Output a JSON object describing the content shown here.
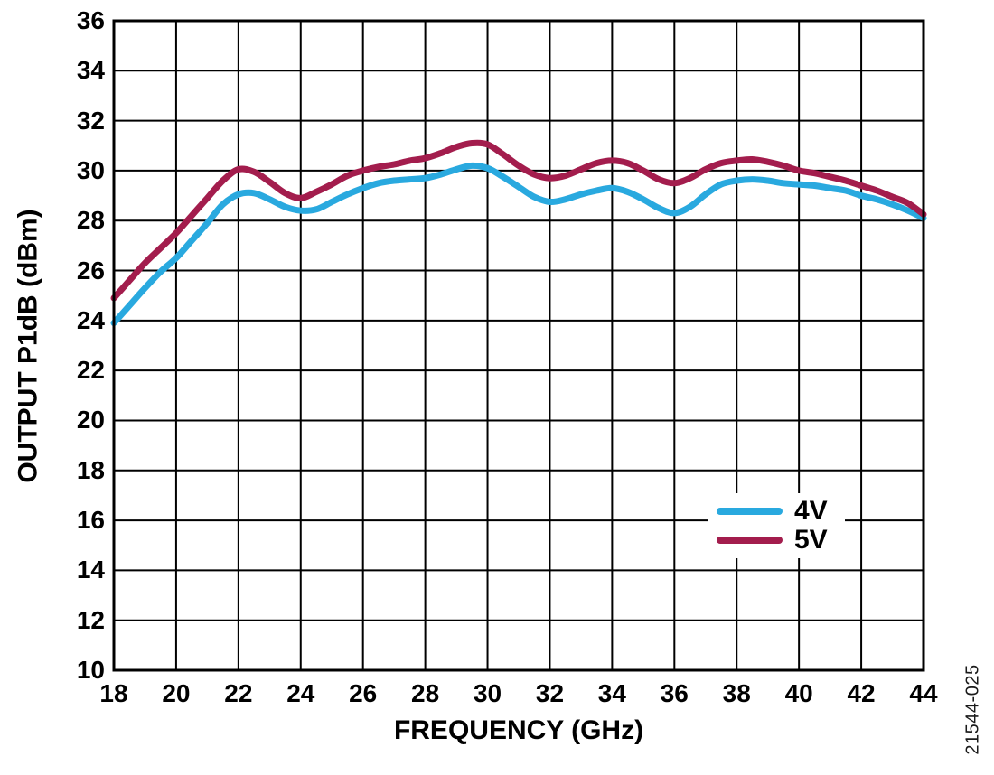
{
  "figure_code": "21544-025",
  "colors": {
    "background": "#ffffff",
    "grid": "#000000",
    "series_4v": "#29A9DF",
    "series_5v": "#A31D4D"
  },
  "chart_data": {
    "type": "line",
    "title": "",
    "xlabel": "FREQUENCY (GHz)",
    "ylabel": "OUTPUT P1dB (dBm)",
    "xlim": [
      18,
      44
    ],
    "ylim": [
      10,
      36
    ],
    "x_tick_step": 2,
    "y_tick_step": 2,
    "x_ticks": [
      18,
      20,
      22,
      24,
      26,
      28,
      30,
      32,
      34,
      36,
      38,
      40,
      42,
      44
    ],
    "y_ticks": [
      10,
      12,
      14,
      16,
      18,
      20,
      22,
      24,
      26,
      28,
      30,
      32,
      34,
      36
    ],
    "grid": true,
    "legend_position": "inside right-middle",
    "x": [
      18,
      18.5,
      19,
      19.5,
      20,
      20.5,
      21,
      21.5,
      22,
      22.5,
      23,
      23.5,
      24,
      24.5,
      25,
      25.5,
      26,
      26.5,
      27,
      27.5,
      28,
      28.5,
      29,
      29.5,
      30,
      30.5,
      31,
      31.5,
      32,
      32.5,
      33,
      33.5,
      34,
      34.5,
      35,
      35.5,
      36,
      36.5,
      37,
      37.5,
      38,
      38.5,
      39,
      39.5,
      40,
      40.5,
      41,
      41.5,
      42,
      42.5,
      43,
      43.5,
      44
    ],
    "series": [
      {
        "name": "4V",
        "color": "#29A9DF",
        "values": [
          23.9,
          24.6,
          25.3,
          25.95,
          26.5,
          27.2,
          27.9,
          28.65,
          29.05,
          29.1,
          28.85,
          28.55,
          28.4,
          28.45,
          28.75,
          29.05,
          29.3,
          29.5,
          29.6,
          29.65,
          29.7,
          29.85,
          30.05,
          30.2,
          30.1,
          29.75,
          29.35,
          28.95,
          28.75,
          28.85,
          29.05,
          29.2,
          29.3,
          29.15,
          28.85,
          28.5,
          28.3,
          28.55,
          29.05,
          29.45,
          29.6,
          29.65,
          29.6,
          29.5,
          29.45,
          29.4,
          29.3,
          29.2,
          29.0,
          28.85,
          28.65,
          28.4,
          28.1
        ]
      },
      {
        "name": "5V",
        "color": "#A31D4D",
        "values": [
          24.9,
          25.6,
          26.3,
          26.9,
          27.5,
          28.2,
          28.9,
          29.6,
          30.05,
          29.95,
          29.55,
          29.1,
          28.9,
          29.15,
          29.45,
          29.8,
          30.0,
          30.15,
          30.25,
          30.4,
          30.5,
          30.7,
          30.95,
          31.1,
          31.05,
          30.65,
          30.2,
          29.85,
          29.7,
          29.8,
          30.05,
          30.3,
          30.4,
          30.3,
          30.0,
          29.65,
          29.5,
          29.7,
          30.05,
          30.3,
          30.4,
          30.45,
          30.35,
          30.2,
          30.0,
          29.9,
          29.75,
          29.6,
          29.4,
          29.2,
          28.95,
          28.7,
          28.25
        ]
      }
    ]
  }
}
